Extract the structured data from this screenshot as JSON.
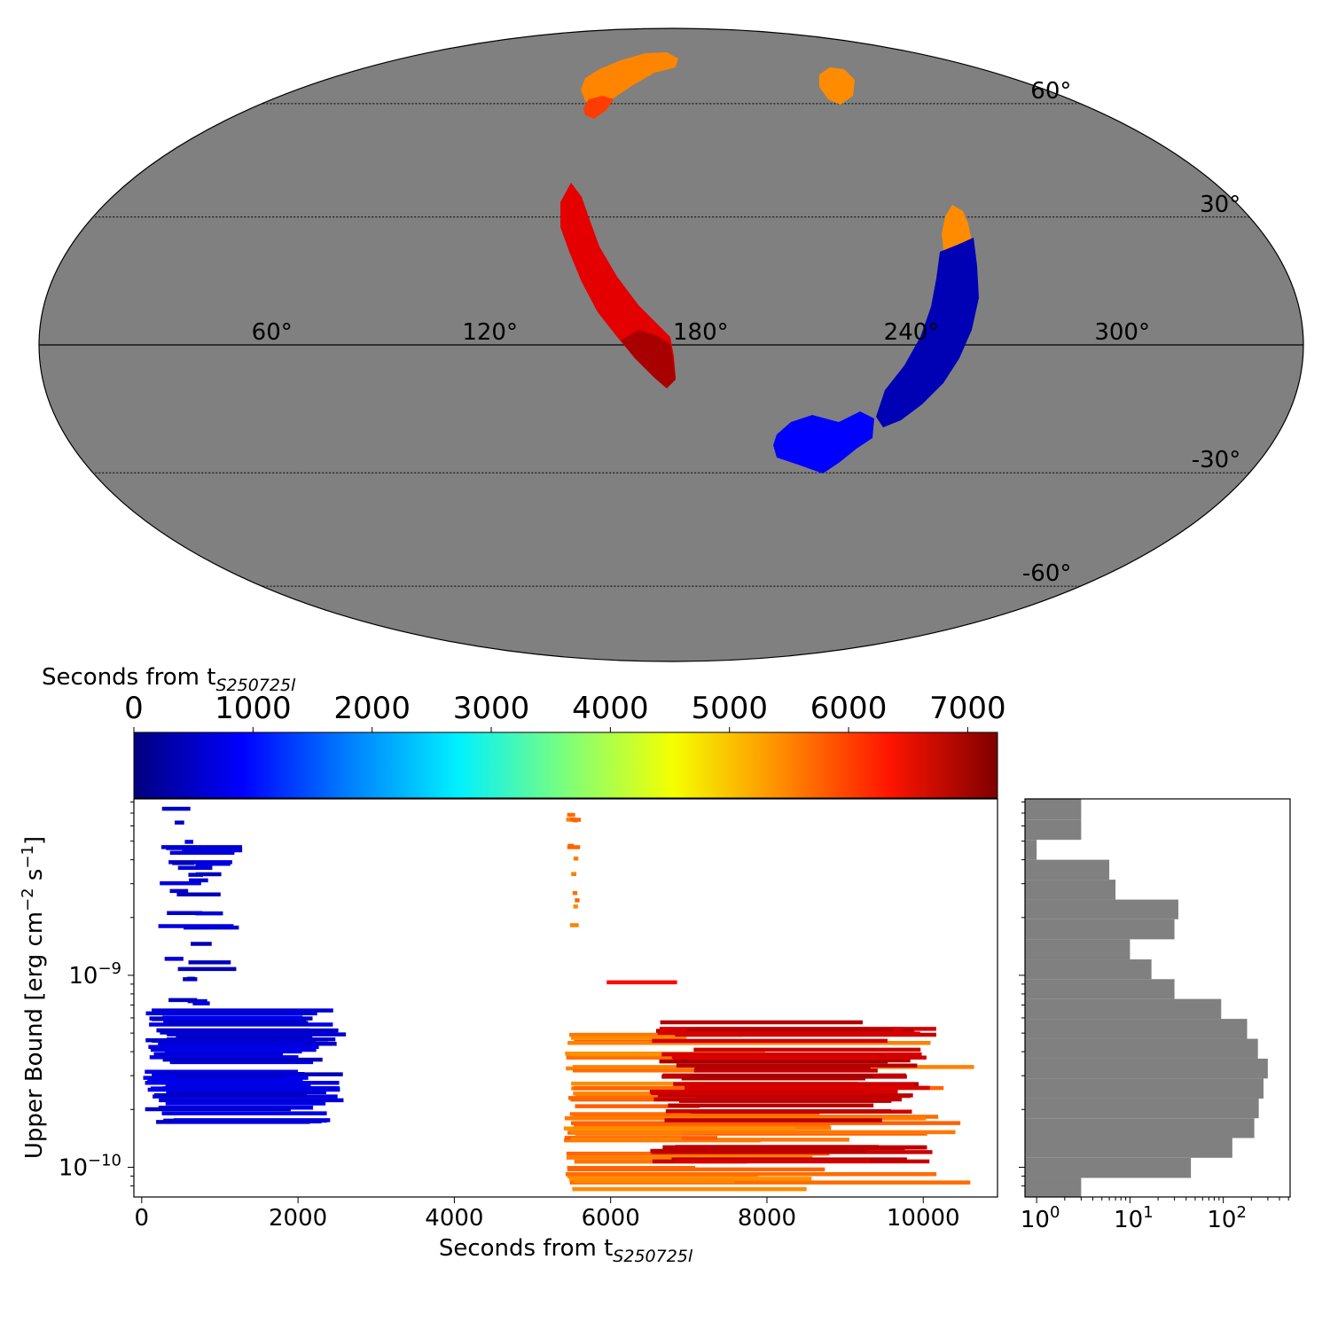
{
  "chart_data": [
    {
      "type": "map",
      "projection": "mollweide",
      "description_label": "sky-map",
      "lat_labels": [
        "60°",
        "30°",
        "-30°",
        "-60°"
      ],
      "lat_values": [
        60,
        30,
        -30,
        -60
      ],
      "lon_labels": [
        "300°",
        "240°",
        "180°",
        "120°",
        "60°"
      ],
      "lon_values": [
        300,
        240,
        180,
        120,
        60
      ],
      "background_color": "#808080",
      "regions": [
        {
          "name": "north-patch-1",
          "time": 5500
        },
        {
          "name": "north-patch-2",
          "time": 5500
        },
        {
          "name": "north-patch-3",
          "time": 5500
        },
        {
          "name": "red-arc",
          "time": 6900
        },
        {
          "name": "blue-arc",
          "time": 500
        },
        {
          "name": "blue-blob",
          "time": 1200
        }
      ]
    },
    {
      "type": "colorbar",
      "title": "Seconds from t",
      "title_subscript": "S250725l",
      "ticks": [
        0,
        1000,
        2000,
        3000,
        4000,
        5000,
        6000,
        7000
      ],
      "range": [
        0,
        7250
      ],
      "colormap": "jet"
    },
    {
      "type": "horizontal-segments",
      "xlabel": "Seconds from t",
      "xlabel_subscript": "S250725l",
      "ylabel": "Upper Bound [erg cm",
      "ylabel_sup1": "−2",
      "ylabel_mid": " s",
      "ylabel_sup2": "−1",
      "ylabel_end": "]",
      "x_ticks": [
        0,
        2000,
        4000,
        6000,
        8000,
        10000
      ],
      "xlim": [
        -100,
        10950
      ],
      "ylim": [
        7e-11,
        8.3e-09
      ],
      "yscale": "log",
      "y_tick_labels": [
        {
          "base": "10",
          "exp": "−9",
          "value": 1e-09
        },
        {
          "base": "10",
          "exp": "−10",
          "value": 1e-10
        }
      ],
      "groups": [
        {
          "name": "blue-group",
          "color_time": 600,
          "x_start_range": [
            0,
            450
          ],
          "x_end_range": [
            1800,
            2620
          ],
          "y_range": [
            1.7e-10,
            6.6e-10
          ],
          "count": 60
        },
        {
          "name": "blue-tail",
          "color_time": 550,
          "x_start_range": [
            200,
            700
          ],
          "x_end_range": [
            500,
            1300
          ],
          "y_range": [
            6.6e-10,
            7.5e-09
          ],
          "count": 30
        },
        {
          "name": "orange-group",
          "color_time": 5500,
          "x_start_range": [
            5400,
            5560
          ],
          "x_end_range": [
            6800,
            10950
          ],
          "y_range": [
            7.5e-11,
            5.3e-10
          ],
          "count": 45
        },
        {
          "name": "orange-tail",
          "color_time": 5500,
          "x_start_range": [
            5400,
            5560
          ],
          "x_end_range": [
            5520,
            5620
          ],
          "y_range": [
            1.8e-09,
            7.5e-09
          ],
          "count": 12
        },
        {
          "name": "red-group",
          "color_time": 6800,
          "x_start_range": [
            6500,
            7100
          ],
          "x_end_range": [
            9200,
            10200
          ],
          "y_range": [
            1.05e-10,
            6e-10
          ],
          "count": 50
        }
      ],
      "single_segment": {
        "x": [
          5950,
          6850
        ],
        "y": 9.2e-10,
        "color_time": 6300
      }
    },
    {
      "type": "histogram-horizontal",
      "xscale": "log",
      "x_tick_labels": [
        {
          "base": "10",
          "exp": "0",
          "value": 1
        },
        {
          "base": "10",
          "exp": "1",
          "value": 10
        },
        {
          "base": "10",
          "exp": "2",
          "value": 100
        }
      ],
      "xlim": [
        0.75,
        520
      ],
      "ylim": [
        7e-11,
        8.3e-09
      ],
      "bar_color": "#808080",
      "bins": [
        {
          "y0": 7e-11,
          "y1": 8.8e-11,
          "count": 3
        },
        {
          "y0": 8.8e-11,
          "y1": 1.12e-10,
          "count": 45
        },
        {
          "y0": 1.12e-10,
          "y1": 1.42e-10,
          "count": 125
        },
        {
          "y0": 1.42e-10,
          "y1": 1.8e-10,
          "count": 215
        },
        {
          "y0": 1.8e-10,
          "y1": 2.28e-10,
          "count": 240
        },
        {
          "y0": 2.28e-10,
          "y1": 2.9e-10,
          "count": 270
        },
        {
          "y0": 2.9e-10,
          "y1": 3.68e-10,
          "count": 300
        },
        {
          "y0": 3.68e-10,
          "y1": 4.67e-10,
          "count": 235
        },
        {
          "y0": 4.67e-10,
          "y1": 5.93e-10,
          "count": 180
        },
        {
          "y0": 5.93e-10,
          "y1": 7.53e-10,
          "count": 95
        },
        {
          "y0": 7.53e-10,
          "y1": 9.55e-10,
          "count": 30
        },
        {
          "y0": 9.55e-10,
          "y1": 1.21e-09,
          "count": 17
        },
        {
          "y0": 1.21e-09,
          "y1": 1.54e-09,
          "count": 10
        },
        {
          "y0": 1.54e-09,
          "y1": 1.96e-09,
          "count": 30
        },
        {
          "y0": 1.96e-09,
          "y1": 2.48e-09,
          "count": 33
        },
        {
          "y0": 2.48e-09,
          "y1": 3.15e-09,
          "count": 7
        },
        {
          "y0": 3.15e-09,
          "y1": 4e-09,
          "count": 6
        },
        {
          "y0": 4e-09,
          "y1": 5.08e-09,
          "count": 1
        },
        {
          "y0": 5.08e-09,
          "y1": 6.45e-09,
          "count": 3
        },
        {
          "y0": 6.45e-09,
          "y1": 8.3e-09,
          "count": 3
        }
      ]
    }
  ]
}
